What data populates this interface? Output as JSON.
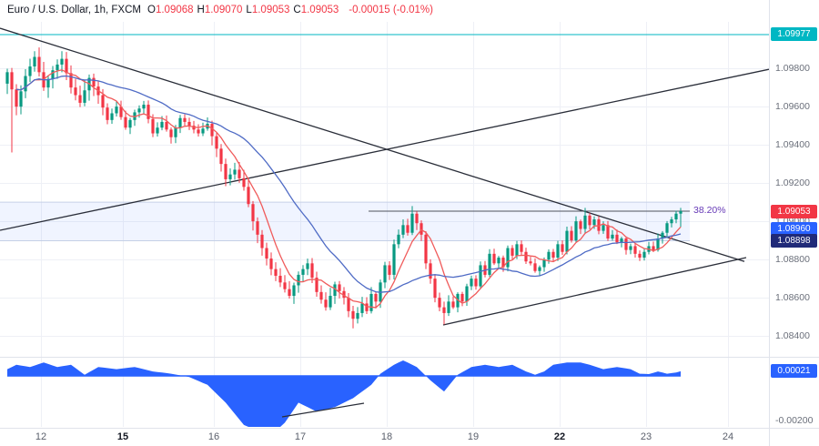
{
  "header": {
    "symbol_title": "Euro / U.S. Dollar, 1h, FXCM",
    "ohlc": [
      {
        "label": "O",
        "value": "1.09068"
      },
      {
        "label": "H",
        "value": "1.09070"
      },
      {
        "label": "L",
        "value": "1.09053"
      },
      {
        "label": "C",
        "value": "1.09053"
      }
    ],
    "change": "-0.00015 (-0.01%)"
  },
  "colors": {
    "up": "#089981",
    "down": "#f23645",
    "ma_fast": "#f05b5b",
    "ma_slow": "#4f6bc5",
    "oscillator": "#2962ff",
    "grid": "#eef0f6",
    "axis_text": "#6a6f7a",
    "trendline": "#2a2e39",
    "hline": "#00b7c3",
    "band_fill": "rgba(41,98,255,0.07)",
    "band_edge": "#c5d0e6",
    "fib_line": "#50535e",
    "fib_label": "#673ab7",
    "separator": "#e0e3eb",
    "badge_last": "#f23645",
    "badge_ma": "#2962ff",
    "badge_dark": "#202a78",
    "badge_hline": "#00b7c3",
    "badge_osc": "#2962ff"
  },
  "price_axis": {
    "labels": [
      "1.09800",
      "1.09600",
      "1.09400",
      "1.09200",
      "1.09000",
      "1.08800",
      "1.08600",
      "1.08400"
    ],
    "indicator_label": "-0.00200"
  },
  "badges": [
    {
      "text": "1.09977",
      "price": 1.09977,
      "bg": "#00b7c3"
    },
    {
      "text": "1.09053",
      "price": 1.09053,
      "bg": "#f23645"
    },
    {
      "text": "1.08960",
      "price": 1.0896,
      "bg": "#2962ff"
    },
    {
      "text": "1.08898",
      "price": 1.08898,
      "bg": "#202a78"
    }
  ],
  "indicator_badge": {
    "text": "0.00021",
    "value": 0.00021,
    "bg": "#2962ff"
  },
  "chart_data": {
    "type": "candlestick",
    "symbol": "EURUSD",
    "description": "Euro / U.S. Dollar",
    "interval": "1h",
    "exchange": "FXCM",
    "last": {
      "open": 1.09068,
      "high": 1.0907,
      "low": 1.09053,
      "close": 1.09053,
      "change": -0.00015,
      "change_pct": -0.01
    },
    "y_range": [
      1.084,
      1.1004
    ],
    "x_labels": [
      {
        "text": "12",
        "x": 45
      },
      {
        "text": "15",
        "x": 135,
        "bold": true
      },
      {
        "text": "16",
        "x": 235
      },
      {
        "text": "17",
        "x": 330
      },
      {
        "text": "18",
        "x": 425
      },
      {
        "text": "19",
        "x": 520
      },
      {
        "text": "22",
        "x": 615,
        "bold": true
      },
      {
        "text": "23",
        "x": 710
      },
      {
        "text": "24",
        "x": 800
      }
    ],
    "first_open": 1.0972,
    "closes": [
      1.0978,
      1.0969,
      1.096,
      1.0968,
      1.0976,
      1.0981,
      1.0986,
      1.0978,
      1.097,
      1.09745,
      1.0979,
      1.0982,
      1.0985,
      1.09775,
      1.097,
      1.0966,
      1.0962,
      1.09685,
      1.0975,
      1.09705,
      1.0966,
      1.09595,
      1.0953,
      1.09565,
      1.096,
      1.09545,
      1.0949,
      1.0953,
      1.0957,
      1.0959,
      1.0961,
      1.09535,
      1.0946,
      1.0949,
      1.0952,
      1.0948,
      1.0944,
      1.0949,
      1.0954,
      1.0952,
      1.095,
      1.0948,
      1.0946,
      1.09485,
      1.0951,
      1.09445,
      1.0938,
      1.093,
      1.0922,
      1.09245,
      1.0927,
      1.09225,
      1.0918,
      1.0909,
      1.09,
      1.0893,
      1.0886,
      1.08805,
      1.0875,
      1.08715,
      1.0868,
      1.08645,
      1.0861,
      1.08665,
      1.0872,
      1.0875,
      1.0878,
      1.08705,
      1.0863,
      1.0859,
      1.0855,
      1.0861,
      1.0867,
      1.08635,
      1.086,
      1.0853,
      1.0849,
      1.0852,
      1.0857,
      1.0853,
      1.0862,
      1.0858,
      1.0868,
      1.0877,
      1.0872,
      1.0888,
      1.0893,
      1.0898,
      1.0894,
      1.0904,
      1.0899,
      1.0893,
      1.0878,
      1.087,
      1.086,
      1.0855,
      1.0852,
      1.0858,
      1.0855,
      1.0862,
      1.0858,
      1.0866,
      1.087,
      1.0866,
      1.0877,
      1.0872,
      1.0883,
      1.0878,
      1.0881,
      1.0876,
      1.0886,
      1.0882,
      1.0888,
      1.0884,
      1.0879,
      1.0878,
      1.0874,
      1.0876,
      1.088,
      1.0884,
      1.0881,
      1.0888,
      1.0884,
      1.0895,
      1.089,
      1.09,
      1.0896,
      1.0903,
      1.0898,
      1.0901,
      1.0895,
      1.0898,
      1.0891,
      1.0893,
      1.0889,
      1.0891,
      1.0885,
      1.0887,
      1.0883,
      1.0881,
      1.0884,
      1.0887,
      1.0885,
      1.0891,
      1.0894,
      1.0899,
      1.0901,
      1.0904,
      1.09053
    ],
    "wick_regions": [
      {
        "until": 21,
        "w": 0.00045
      },
      {
        "until": 44,
        "w": 0.00028
      },
      {
        "until": 60,
        "w": 0.0004
      },
      {
        "until": 78,
        "w": 0.00035
      },
      {
        "until": 97,
        "w": 0.0003
      },
      {
        "until": 148,
        "w": 0.00022
      }
    ],
    "special_wicks": {
      "1": {
        "low": 1.0936
      },
      "6": {
        "high": 1.0989
      },
      "12": {
        "high": 1.0989
      },
      "76": {
        "low": 1.0844
      },
      "89": {
        "high": 1.0908
      },
      "96": {
        "low": 1.0846
      },
      "127": {
        "high": 1.0907
      },
      "148": {
        "high": 1.0907,
        "low": 1.0897
      }
    },
    "moving_averages": [
      {
        "name": "ma-fast",
        "period": 7,
        "color_key": "ma_fast"
      },
      {
        "name": "ma-slow",
        "period": 24,
        "color_key": "ma_slow"
      }
    ],
    "horizontal_line": {
      "price": 1.09977,
      "label": "1.09977"
    },
    "fib": {
      "label": "38.20%",
      "price": 1.09053,
      "band_top": 1.091,
      "band_bottom": 1.08898,
      "line_from_x": 405,
      "line_to_x": 758
    },
    "trendlines": [
      {
        "name": "descending-trendline",
        "x1": 0,
        "price1": 1.1001,
        "x2": 818,
        "price2": 1.0879
      },
      {
        "name": "ascending-trendline-long",
        "x1": 0,
        "price1": 1.08953,
        "x2": 845,
        "price2": 1.09795
      },
      {
        "name": "ascending-trendline-short",
        "x1": 487,
        "price1": 1.08458,
        "x2": 820,
        "price2": 1.0881
      }
    ],
    "oscillator": {
      "name": "oscillator",
      "last_value": 0.00021,
      "axis_label": "-0.00200",
      "keyframes": [
        [
          0,
          0.0003
        ],
        [
          2,
          0.0005
        ],
        [
          5,
          0.0004
        ],
        [
          8,
          0.0006
        ],
        [
          11,
          0.0004
        ],
        [
          14,
          0.0005
        ],
        [
          17,
          5e-05
        ],
        [
          20,
          0.0004
        ],
        [
          24,
          0.0003
        ],
        [
          28,
          0.0004
        ],
        [
          32,
          0.0002
        ],
        [
          36,
          0.0001
        ],
        [
          40,
          -5e-05
        ],
        [
          44,
          -0.0004
        ],
        [
          48,
          -0.0012
        ],
        [
          52,
          -0.0022
        ],
        [
          56,
          -0.0026
        ],
        [
          60,
          -0.0024
        ],
        [
          64,
          -0.0012
        ],
        [
          68,
          -0.0016
        ],
        [
          72,
          -0.0014
        ],
        [
          76,
          -0.001
        ],
        [
          80,
          -0.0004
        ],
        [
          82,
          0.0001
        ],
        [
          85,
          0.0005
        ],
        [
          87,
          0.0007
        ],
        [
          90,
          0.0004
        ],
        [
          93,
          -0.0002
        ],
        [
          96,
          -0.0007
        ],
        [
          99,
          5e-05
        ],
        [
          102,
          0.0004
        ],
        [
          105,
          0.0005
        ],
        [
          108,
          0.0004
        ],
        [
          111,
          0.0005
        ],
        [
          114,
          0.0002
        ],
        [
          116,
          5e-05
        ],
        [
          118,
          0.0002
        ],
        [
          120,
          0.0005
        ],
        [
          123,
          0.0006
        ],
        [
          126,
          0.0006
        ],
        [
          128,
          0.0005
        ],
        [
          131,
          0.0003
        ],
        [
          134,
          0.0004
        ],
        [
          137,
          0.0003
        ],
        [
          139,
          0.0001
        ],
        [
          141,
          8e-05
        ],
        [
          143,
          0.0002
        ],
        [
          145,
          0.0001
        ],
        [
          147,
          0.00015
        ],
        [
          148,
          0.00021
        ]
      ],
      "trendline": {
        "x1": 310,
        "y1": 458,
        "x2": 400,
        "y2": 443
      }
    }
  }
}
